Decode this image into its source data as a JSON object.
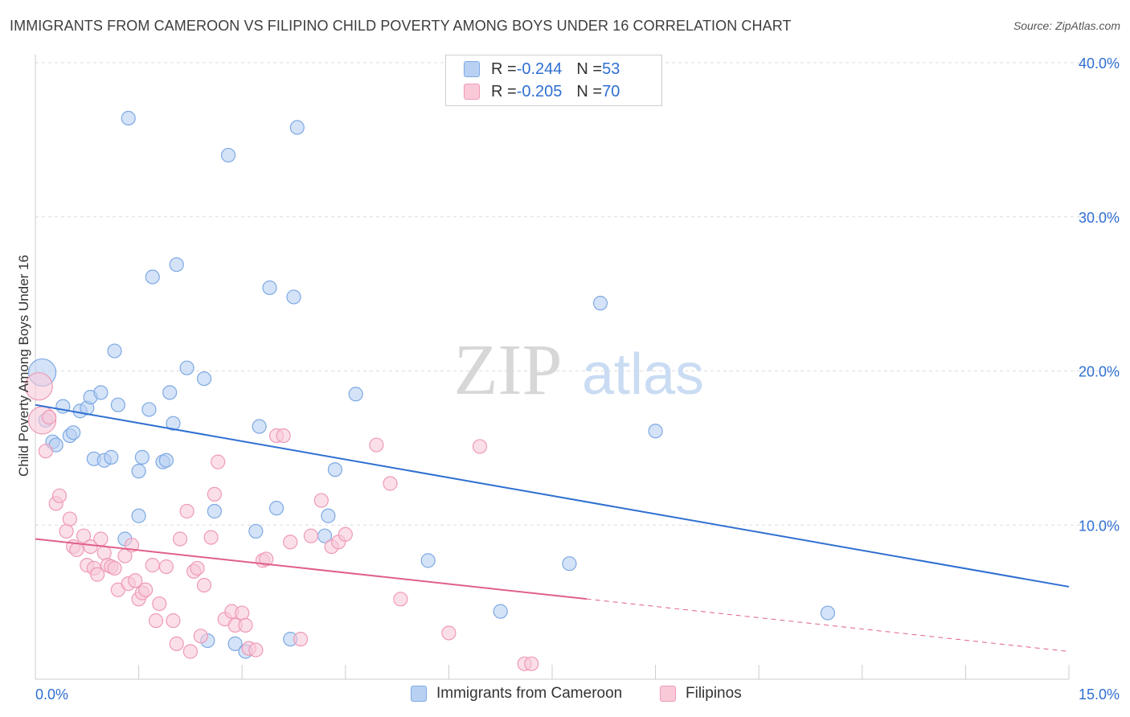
{
  "title": "IMMIGRANTS FROM CAMEROON VS FILIPINO CHILD POVERTY AMONG BOYS UNDER 16 CORRELATION CHART",
  "source": "Source: ZipAtlas.com",
  "watermark": {
    "zip": "ZIP",
    "atlas": "atlas"
  },
  "legend": {
    "series1": {
      "r_label": "R = ",
      "r_value": "-0.244",
      "n_label": "N = ",
      "n_value": "53"
    },
    "series2": {
      "r_label": "R = ",
      "r_value": "-0.205",
      "n_label": "N = ",
      "n_value": "70"
    }
  },
  "bottom_legend": {
    "series1": "Immigrants from Cameroon",
    "series2": "Filipinos"
  },
  "colors": {
    "blue_fill": "#b8d1f2",
    "blue_stroke": "#7ea9e4",
    "blue_line": "#2f6fd1",
    "pink_fill": "#f9c9d8",
    "pink_stroke": "#ee9ab6",
    "pink_line": "#e0608a",
    "tick_text": "#2f6fd1",
    "grid": "#dddddd"
  },
  "chart_data": {
    "type": "scatter",
    "title": "IMMIGRANTS FROM CAMEROON VS FILIPINO CHILD POVERTY AMONG BOYS UNDER 16 CORRELATION CHART",
    "xlabel": "",
    "ylabel": "Child Poverty Among Boys Under 16",
    "xlim": [
      0,
      15
    ],
    "ylim": [
      0,
      40
    ],
    "x_tick_labels": [
      "0.0%",
      "15.0%"
    ],
    "y_ticks": [
      10,
      20,
      30,
      40
    ],
    "y_tick_labels": [
      "10.0%",
      "20.0%",
      "30.0%",
      "40.0%"
    ],
    "grid": true,
    "series": [
      {
        "name": "Immigrants from Cameroon",
        "color": "blue",
        "r": -0.244,
        "n": 53,
        "trend": {
          "x0": 0,
          "y0": 17.8,
          "x1": 15,
          "y1": 6.0,
          "dashed_from": null
        },
        "points": [
          [
            0.1,
            19.9,
            "big"
          ],
          [
            0.15,
            16.8
          ],
          [
            0.25,
            15.4
          ],
          [
            0.3,
            15.2
          ],
          [
            0.4,
            17.7
          ],
          [
            0.5,
            15.8
          ],
          [
            0.55,
            16.0
          ],
          [
            0.65,
            17.4
          ],
          [
            0.75,
            17.6
          ],
          [
            0.8,
            18.3
          ],
          [
            0.85,
            14.3
          ],
          [
            0.95,
            18.6
          ],
          [
            1.0,
            14.2
          ],
          [
            1.1,
            14.4
          ],
          [
            1.15,
            21.3
          ],
          [
            1.2,
            17.8
          ],
          [
            1.3,
            9.1
          ],
          [
            1.35,
            36.4
          ],
          [
            1.5,
            10.6
          ],
          [
            1.5,
            13.5
          ],
          [
            1.55,
            14.4
          ],
          [
            1.65,
            17.5
          ],
          [
            1.7,
            26.1
          ],
          [
            1.85,
            14.1
          ],
          [
            1.9,
            14.2
          ],
          [
            1.95,
            18.6
          ],
          [
            2.0,
            16.6
          ],
          [
            2.05,
            26.9
          ],
          [
            2.2,
            20.2
          ],
          [
            2.45,
            19.5
          ],
          [
            2.5,
            2.5
          ],
          [
            2.6,
            10.9
          ],
          [
            2.8,
            34.0
          ],
          [
            2.9,
            2.3
          ],
          [
            3.05,
            1.8
          ],
          [
            3.2,
            9.6
          ],
          [
            3.25,
            16.4
          ],
          [
            3.4,
            25.4
          ],
          [
            3.5,
            11.1
          ],
          [
            3.7,
            2.6
          ],
          [
            3.75,
            24.8
          ],
          [
            3.8,
            35.8
          ],
          [
            4.2,
            9.3
          ],
          [
            4.25,
            10.6
          ],
          [
            4.35,
            13.6
          ],
          [
            4.65,
            18.5
          ],
          [
            5.7,
            7.7
          ],
          [
            6.75,
            4.4
          ],
          [
            7.75,
            7.5
          ],
          [
            8.2,
            24.4
          ],
          [
            9.0,
            16.1
          ],
          [
            11.5,
            4.3
          ]
        ]
      },
      {
        "name": "Filipinos",
        "color": "pink",
        "r": -0.205,
        "n": 70,
        "trend": {
          "x0": 0,
          "y0": 9.1,
          "x1": 15,
          "y1": 1.8,
          "dashed_from": 8.0
        },
        "points": [
          [
            0.05,
            19.0,
            "big"
          ],
          [
            0.1,
            16.8,
            "big"
          ],
          [
            0.15,
            14.8
          ],
          [
            0.2,
            17.0
          ],
          [
            0.3,
            11.4
          ],
          [
            0.35,
            11.9
          ],
          [
            0.45,
            9.6
          ],
          [
            0.5,
            10.4
          ],
          [
            0.55,
            8.6
          ],
          [
            0.6,
            8.4
          ],
          [
            0.7,
            9.3
          ],
          [
            0.75,
            7.4
          ],
          [
            0.8,
            8.6
          ],
          [
            0.85,
            7.2
          ],
          [
            0.9,
            6.8
          ],
          [
            0.95,
            9.1
          ],
          [
            1.0,
            8.2
          ],
          [
            1.05,
            7.4
          ],
          [
            1.1,
            7.3
          ],
          [
            1.15,
            7.2
          ],
          [
            1.2,
            5.8
          ],
          [
            1.3,
            8.0
          ],
          [
            1.35,
            6.2
          ],
          [
            1.4,
            8.7
          ],
          [
            1.45,
            6.4
          ],
          [
            1.5,
            5.2
          ],
          [
            1.55,
            5.6
          ],
          [
            1.6,
            5.8
          ],
          [
            1.7,
            7.4
          ],
          [
            1.75,
            3.8
          ],
          [
            1.8,
            4.9
          ],
          [
            1.9,
            7.3
          ],
          [
            2.0,
            3.8
          ],
          [
            2.05,
            2.3
          ],
          [
            2.1,
            9.1
          ],
          [
            2.2,
            10.9
          ],
          [
            2.25,
            1.8
          ],
          [
            2.3,
            7.0
          ],
          [
            2.35,
            7.2
          ],
          [
            2.4,
            2.8
          ],
          [
            2.45,
            6.1
          ],
          [
            2.55,
            9.2
          ],
          [
            2.6,
            12.0
          ],
          [
            2.65,
            14.1
          ],
          [
            2.75,
            3.9
          ],
          [
            2.85,
            4.4
          ],
          [
            2.9,
            3.5
          ],
          [
            3.0,
            4.3
          ],
          [
            3.05,
            3.5
          ],
          [
            3.1,
            2.0
          ],
          [
            3.2,
            1.9
          ],
          [
            3.3,
            7.7
          ],
          [
            3.35,
            7.8
          ],
          [
            3.5,
            15.8
          ],
          [
            3.6,
            15.8
          ],
          [
            3.7,
            8.9
          ],
          [
            3.85,
            2.6
          ],
          [
            4.0,
            9.3
          ],
          [
            4.15,
            11.6
          ],
          [
            4.3,
            8.6
          ],
          [
            4.4,
            8.9
          ],
          [
            4.5,
            9.4
          ],
          [
            4.95,
            15.2
          ],
          [
            5.15,
            12.7
          ],
          [
            5.3,
            5.2
          ],
          [
            6.0,
            3.0
          ],
          [
            6.45,
            15.1
          ],
          [
            7.1,
            1.0
          ],
          [
            7.2,
            1.0
          ]
        ]
      }
    ]
  }
}
